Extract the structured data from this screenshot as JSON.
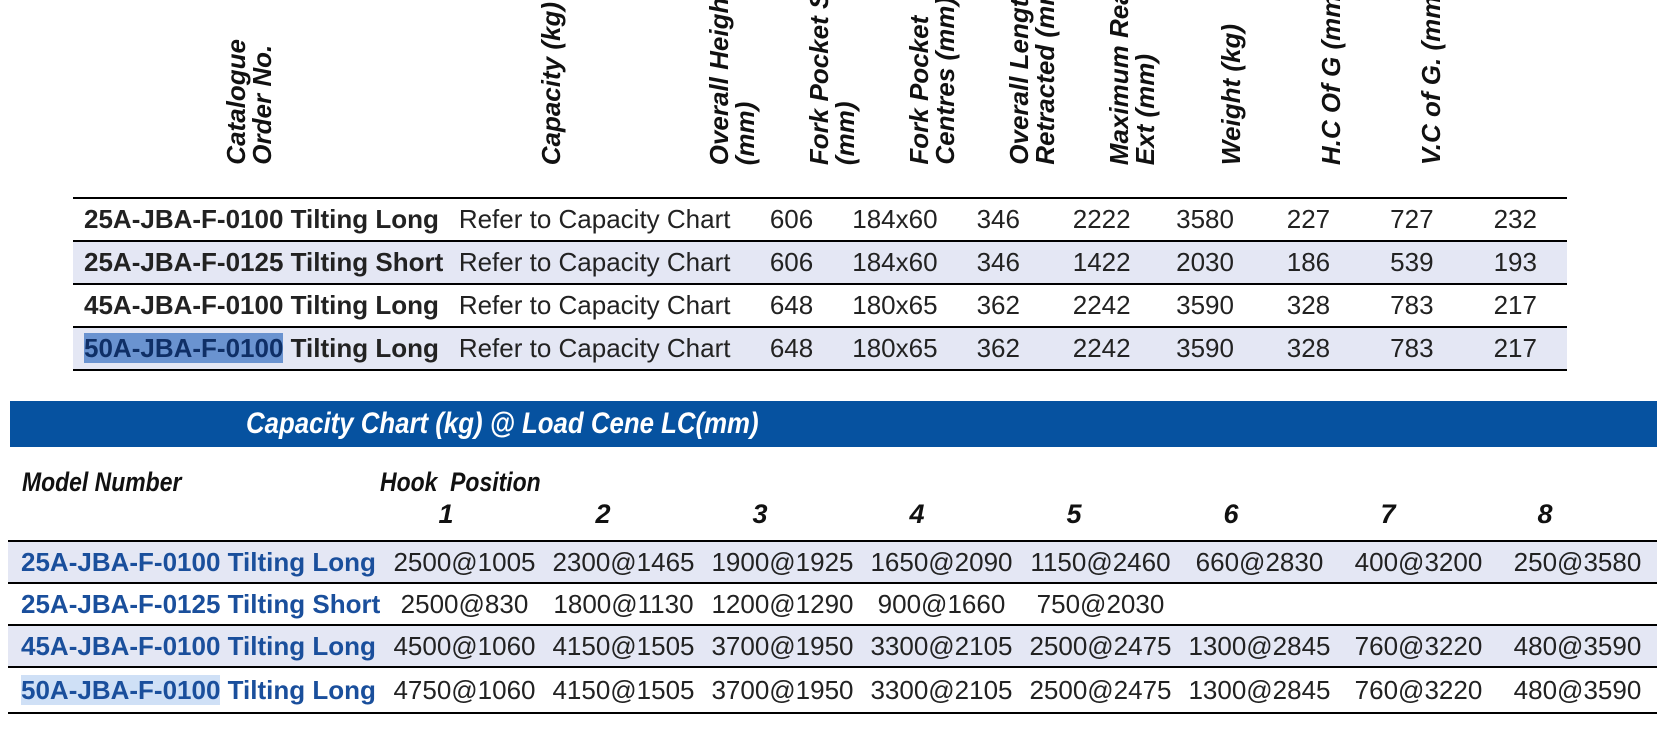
{
  "spec_headers": [
    "Catalogue\nOrder No.",
    "Capacity (kg)",
    "Overall Height\n(mm)",
    "Fork Pocket Size\n(mm)",
    "Fork Pocket\nCentres (mm)",
    "Overall Length\nRetracted (mm)",
    "Maximum Reach\nExt (mm)",
    "Weight (kg)",
    "H.C Of G (mm)",
    "V.C of G. (mm)"
  ],
  "spec_rows": [
    {
      "model_code": "25A-JBA-F-0100",
      "model_suffix": " Tilting Long",
      "capacity": "Refer to Capacity Chart",
      "height": "606",
      "fork_pocket": "184x60",
      "centres": "346",
      "length": "2222",
      "reach": "3580",
      "weight": "227",
      "hcg": "727",
      "vcg": "232",
      "highlight": false
    },
    {
      "model_code": "25A-JBA-F-0125",
      "model_suffix": " Tilting Short",
      "capacity": "Refer to Capacity Chart",
      "height": "606",
      "fork_pocket": "184x60",
      "centres": "346",
      "length": "1422",
      "reach": "2030",
      "weight": "186",
      "hcg": "539",
      "vcg": "193",
      "highlight": false
    },
    {
      "model_code": "45A-JBA-F-0100",
      "model_suffix": " Tilting Long",
      "capacity": "Refer to Capacity Chart",
      "height": "648",
      "fork_pocket": "180x65",
      "centres": "362",
      "length": "2242",
      "reach": "3590",
      "weight": "328",
      "hcg": "783",
      "vcg": "217",
      "highlight": false
    },
    {
      "model_code": "50A-JBA-F-0100",
      "model_suffix": " Tilting Long",
      "capacity": "Refer to Capacity Chart",
      "height": "648",
      "fork_pocket": "180x65",
      "centres": "362",
      "length": "2242",
      "reach": "3590",
      "weight": "328",
      "hcg": "783",
      "vcg": "217",
      "highlight": true
    }
  ],
  "capacity_chart": {
    "title": "Capacity Chart (kg) @ Load Cene LC(mm)",
    "model_header": "Model Number",
    "hook_header": "Hook  Position",
    "positions": [
      "1",
      "2",
      "3",
      "4",
      "5",
      "6",
      "7",
      "8"
    ],
    "rows": [
      {
        "model_code": "25A-JBA-F-0100",
        "model_suffix": " Tilting Long",
        "values": [
          "2500@1005",
          "2300@1465",
          "1900@1925",
          "1650@2090",
          "1150@2460",
          "660@2830",
          "400@3200",
          "250@3580"
        ]
      },
      {
        "model_code": "25A-JBA-F-0125",
        "model_suffix": " Tilting Short",
        "values": [
          "2500@830",
          "1800@1130",
          "1200@1290",
          "900@1660",
          "750@2030",
          "",
          "",
          ""
        ]
      },
      {
        "model_code": "45A-JBA-F-0100",
        "model_suffix": " Tilting Long",
        "values": [
          "4500@1060",
          "4150@1505",
          "3700@1950",
          "3300@2105",
          "2500@2475",
          "1300@2845",
          "760@3220",
          "480@3590"
        ]
      },
      {
        "model_code": "50A-JBA-F-0100",
        "model_suffix": " Tilting Long",
        "values": [
          "4750@1060",
          "4150@1505",
          "3700@1950",
          "3300@2105",
          "2500@2475",
          "1300@2845",
          "760@3220",
          "480@3590"
        ]
      }
    ]
  },
  "colors": {
    "banner": "#0652a0",
    "model_text": "#1a4f9c",
    "row_shade": "#e4e7f4",
    "selection": "#6a93d0"
  }
}
